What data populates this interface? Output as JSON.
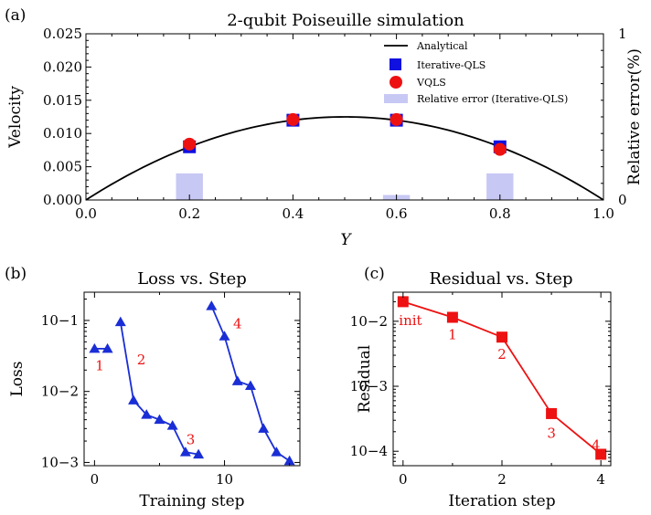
{
  "colors": {
    "analytical": "#000000",
    "iterative": "#1010e0",
    "vqls": "#ee1111",
    "rel_error": "#c8c8f5",
    "loss": "#1a2ed6",
    "residual": "#ee1111",
    "annotation": "#ee1111"
  },
  "chart_data": [
    {
      "panel_label": "(a)",
      "type": "line",
      "title": "2-qubit Poiseuille simulation",
      "xlabel": "Y",
      "ylabel": "Velocity",
      "y2label": "Relative error(%)",
      "xlim": [
        0.0,
        1.0
      ],
      "ylim": [
        0.0,
        0.025
      ],
      "y2lim": [
        0,
        1
      ],
      "x_ticks": [
        "0.0",
        "0.2",
        "0.4",
        "0.6",
        "0.8",
        "1.0"
      ],
      "y_ticks": [
        "0.000",
        "0.005",
        "0.010",
        "0.015",
        "0.020",
        "0.025"
      ],
      "y2_ticks": [
        "0",
        "1"
      ],
      "legend_position": "top-right",
      "series": [
        {
          "name": "Analytical",
          "kind": "line",
          "function": "0.05*Y*(1-Y)"
        },
        {
          "name": "Iterative-QLS",
          "kind": "scatter",
          "marker": "square",
          "x": [
            0.2,
            0.4,
            0.6,
            0.8
          ],
          "y": [
            0.008,
            0.012,
            0.012,
            0.008
          ]
        },
        {
          "name": "VQLS",
          "kind": "scatter",
          "marker": "circle",
          "x": [
            0.2,
            0.4,
            0.6,
            0.8
          ],
          "y": [
            0.0084,
            0.0121,
            0.0121,
            0.0076
          ]
        },
        {
          "name": "Relative error (Iterative-QLS)",
          "kind": "bar",
          "axis": "y2",
          "x": [
            0.2,
            0.6,
            0.8
          ],
          "y": [
            0.16,
            0.03,
            0.16
          ]
        }
      ]
    },
    {
      "panel_label": "(b)",
      "type": "line",
      "title": "Loss vs. Step",
      "xlabel": "Training step",
      "ylabel": "Loss",
      "yscale": "log",
      "xlim": [
        -0.8,
        15.8
      ],
      "ylim": [
        0.0009,
        0.25
      ],
      "x_ticks": [
        "0",
        "10"
      ],
      "y_ticks": [
        "10−1",
        "10−2",
        "10−3"
      ],
      "segments": [
        {
          "x": [
            0,
            1
          ],
          "y": [
            0.04,
            0.04
          ]
        },
        {
          "x": [
            2,
            3,
            4,
            5,
            6,
            7,
            8
          ],
          "y": [
            0.095,
            0.0075,
            0.0047,
            0.004,
            0.0033,
            0.0014,
            0.0013
          ]
        },
        {
          "x": [
            9,
            10,
            11,
            12,
            13,
            14,
            15
          ],
          "y": [
            0.16,
            0.06,
            0.014,
            0.012,
            0.003,
            0.0014,
            0.00105
          ]
        }
      ],
      "annotations": [
        {
          "text": "1",
          "x": 0.4,
          "y": 0.023
        },
        {
          "text": "2",
          "x": 3.6,
          "y": 0.028
        },
        {
          "text": "3",
          "x": 7.4,
          "y": 0.0021
        },
        {
          "text": "4",
          "x": 11.0,
          "y": 0.09
        }
      ]
    },
    {
      "panel_label": "(c)",
      "type": "line",
      "title": "Residual vs. Step",
      "xlabel": "Iteration step",
      "ylabel": "Residual",
      "yscale": "log",
      "xlim": [
        -0.2,
        4.2
      ],
      "ylim": [
        6e-05,
        0.028
      ],
      "x_ticks": [
        "0",
        "2",
        "4"
      ],
      "y_ticks": [
        "10−2",
        "10−3",
        "10−4"
      ],
      "x": [
        0,
        1,
        2,
        3,
        4
      ],
      "y": [
        0.02,
        0.0115,
        0.0057,
        0.00038,
        9e-05
      ],
      "annotations": [
        {
          "text": "init",
          "x": 0.15,
          "y": 0.0103
        },
        {
          "text": "1",
          "x": 1.0,
          "y": 0.0062
        },
        {
          "text": "2",
          "x": 2.0,
          "y": 0.0031
        },
        {
          "text": "3",
          "x": 3.0,
          "y": 0.00019
        },
        {
          "text": "4",
          "x": 3.9,
          "y": 0.000125
        }
      ]
    }
  ]
}
